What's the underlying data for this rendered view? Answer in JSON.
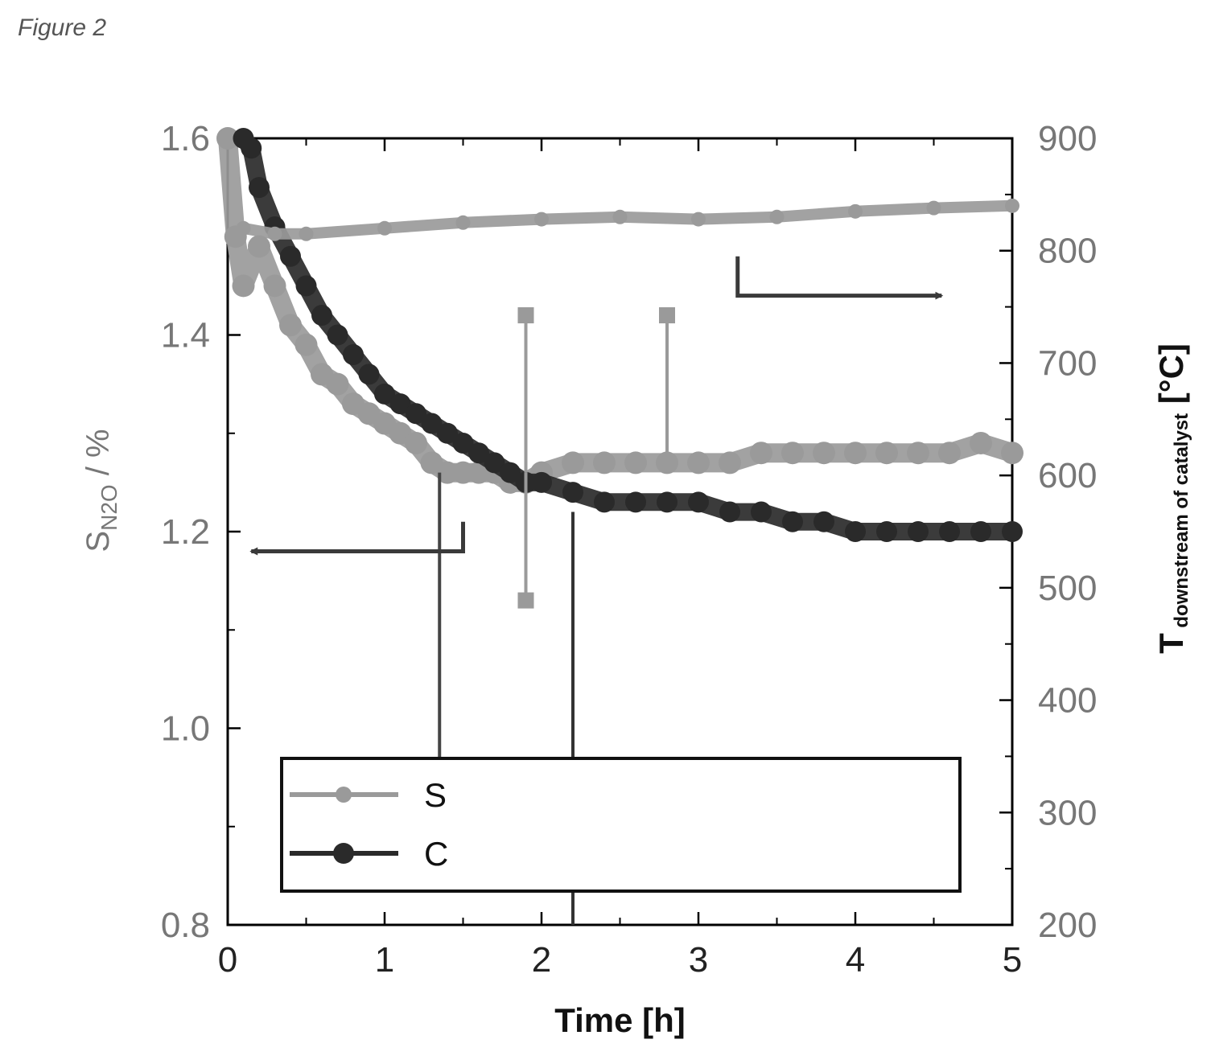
{
  "figure_label": "Figure 2",
  "colors": {
    "series_S": "#9a9a9a",
    "series_C": "#2a2a2a",
    "axis": "#000000",
    "arrow": "#3a3a3a"
  },
  "chart_data": {
    "type": "line",
    "title": "",
    "xlabel": "Time [h]",
    "ylabel_left": {
      "main": "S",
      "sub": "N2O",
      "suffix": " / %"
    },
    "ylabel_right": {
      "main": "T",
      "sub": "downstream of catalyst",
      "suffix": " [°C]"
    },
    "xlim": [
      0,
      5
    ],
    "ylim_left": [
      0.8,
      1.6
    ],
    "ylim_right": [
      200,
      900
    ],
    "x_ticks": [
      "0",
      "1",
      "2",
      "3",
      "4",
      "5"
    ],
    "y_left_ticks": [
      "0.8",
      "1.0",
      "1.2",
      "1.4",
      "1.6"
    ],
    "y_right_ticks": [
      "200",
      "300",
      "400",
      "500",
      "600",
      "700",
      "800",
      "900"
    ],
    "legend": {
      "placement": "bottom",
      "entries": [
        "S",
        "C"
      ]
    },
    "series": [
      {
        "name": "S",
        "role": "S_N2O",
        "axis": "left",
        "x": [
          0,
          0.05,
          0.1,
          0.2,
          0.3,
          0.4,
          0.5,
          0.6,
          0.7,
          0.8,
          0.9,
          1.0,
          1.1,
          1.2,
          1.3,
          1.4,
          1.5,
          1.6,
          1.7,
          1.8,
          1.9,
          2.0,
          2.2,
          2.4,
          2.6,
          2.8,
          3.0,
          3.2,
          3.4,
          3.6,
          3.8,
          4.0,
          4.2,
          4.4,
          4.6,
          4.8,
          5.0
        ],
        "y": [
          1.6,
          1.5,
          1.45,
          1.49,
          1.45,
          1.41,
          1.39,
          1.36,
          1.35,
          1.33,
          1.32,
          1.31,
          1.3,
          1.29,
          1.27,
          1.26,
          1.26,
          1.26,
          1.26,
          1.25,
          1.25,
          1.26,
          1.27,
          1.27,
          1.27,
          1.27,
          1.27,
          1.27,
          1.28,
          1.28,
          1.28,
          1.28,
          1.28,
          1.28,
          1.28,
          1.29,
          1.28
        ]
      },
      {
        "name": "C",
        "role": "S_N2O",
        "axis": "left",
        "x": [
          0.1,
          0.15,
          0.2,
          0.3,
          0.4,
          0.5,
          0.6,
          0.7,
          0.8,
          0.9,
          1.0,
          1.1,
          1.2,
          1.3,
          1.4,
          1.5,
          1.6,
          1.7,
          1.8,
          1.9,
          2.0,
          2.2,
          2.4,
          2.6,
          2.8,
          3.0,
          3.2,
          3.4,
          3.6,
          3.8,
          4.0,
          4.2,
          4.4,
          4.6,
          4.8,
          5.0
        ],
        "y": [
          1.6,
          1.59,
          1.55,
          1.51,
          1.48,
          1.45,
          1.42,
          1.4,
          1.38,
          1.36,
          1.34,
          1.33,
          1.32,
          1.31,
          1.3,
          1.29,
          1.28,
          1.27,
          1.26,
          1.25,
          1.25,
          1.24,
          1.23,
          1.23,
          1.23,
          1.23,
          1.22,
          1.22,
          1.21,
          1.21,
          1.2,
          1.2,
          1.2,
          1.2,
          1.2,
          1.2
        ]
      },
      {
        "name": "",
        "role": "T",
        "axis": "right",
        "x": [
          0.1,
          0.3,
          0.5,
          1.0,
          1.5,
          2.0,
          2.5,
          3.0,
          3.5,
          4.0,
          4.5,
          5.0
        ],
        "y": [
          820,
          815,
          815,
          820,
          825,
          828,
          830,
          828,
          830,
          835,
          838,
          840
        ]
      }
    ],
    "outliers_left": [
      {
        "x": 1.9,
        "y": 1.42
      },
      {
        "x": 1.9,
        "y": 1.13
      },
      {
        "x": 2.8,
        "y": 1.42
      }
    ]
  }
}
